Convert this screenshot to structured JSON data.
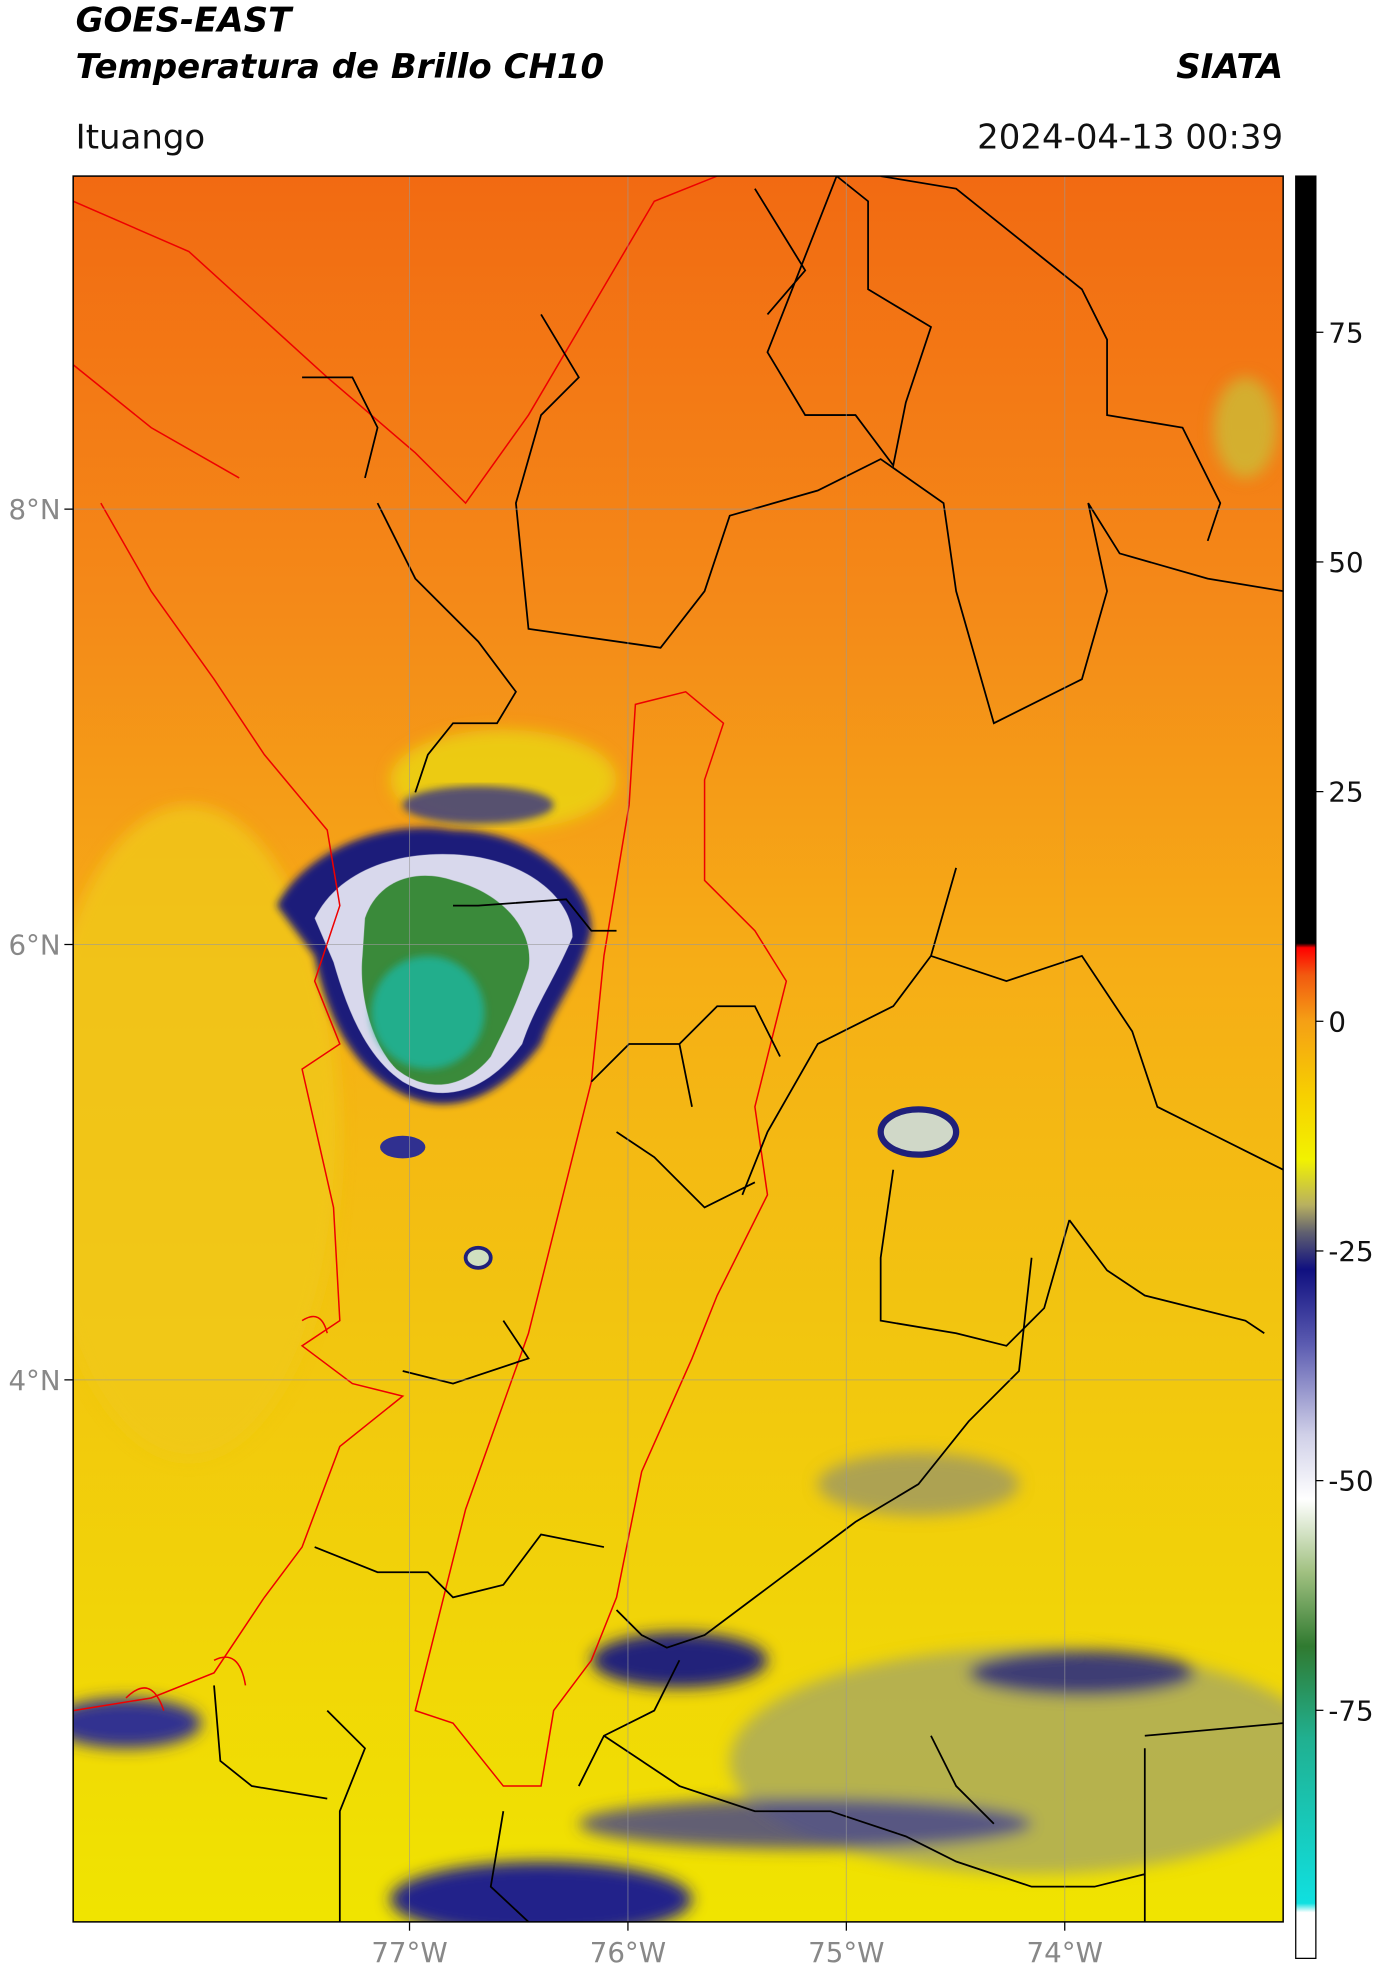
{
  "header": {
    "title": "GOES-EAST",
    "subtitle": "Temperatura de Brillo CH10",
    "source": "SIATA",
    "location": "Ituango",
    "timestamp": "2024-04-13 00:39"
  },
  "map": {
    "xlim": [
      -78.54,
      -73.0
    ],
    "ylim": [
      1.51,
      9.53
    ],
    "xticks": [
      {
        "value": -77,
        "label": "77°W"
      },
      {
        "value": -76,
        "label": "76°W"
      },
      {
        "value": -75,
        "label": "75°W"
      },
      {
        "value": -74,
        "label": "74°W"
      }
    ],
    "yticks": [
      {
        "value": 8,
        "label": "8°N"
      },
      {
        "value": 6,
        "label": "6°N"
      },
      {
        "value": 4,
        "label": "4°N"
      }
    ],
    "grid": true
  },
  "colorbar": {
    "lim": [
      -102,
      92
    ],
    "ticks": [
      75,
      50,
      25,
      0,
      -25,
      -50,
      -75
    ],
    "colormap": [
      {
        "value": 92,
        "color": "#000000"
      },
      {
        "value": 8.5,
        "color": "#000000"
      },
      {
        "value": 8,
        "color": "#ff0000"
      },
      {
        "value": 5,
        "color": "#f25a10"
      },
      {
        "value": 0,
        "color": "#f5a015"
      },
      {
        "value": -8,
        "color": "#f7d000"
      },
      {
        "value": -15,
        "color": "#f2f200"
      },
      {
        "value": -20,
        "color": "#b8b060"
      },
      {
        "value": -23,
        "color": "#606070"
      },
      {
        "value": -27,
        "color": "#101080"
      },
      {
        "value": -35,
        "color": "#5a5ab0"
      },
      {
        "value": -45,
        "color": "#d0d0e8"
      },
      {
        "value": -52,
        "color": "#ffffff"
      },
      {
        "value": -60,
        "color": "#a0c080"
      },
      {
        "value": -68,
        "color": "#307a30"
      },
      {
        "value": -78,
        "color": "#20b090"
      },
      {
        "value": -96,
        "color": "#10e0e0"
      },
      {
        "value": -97,
        "color": "#ffffff"
      },
      {
        "value": -102,
        "color": "#ffffff"
      }
    ]
  }
}
